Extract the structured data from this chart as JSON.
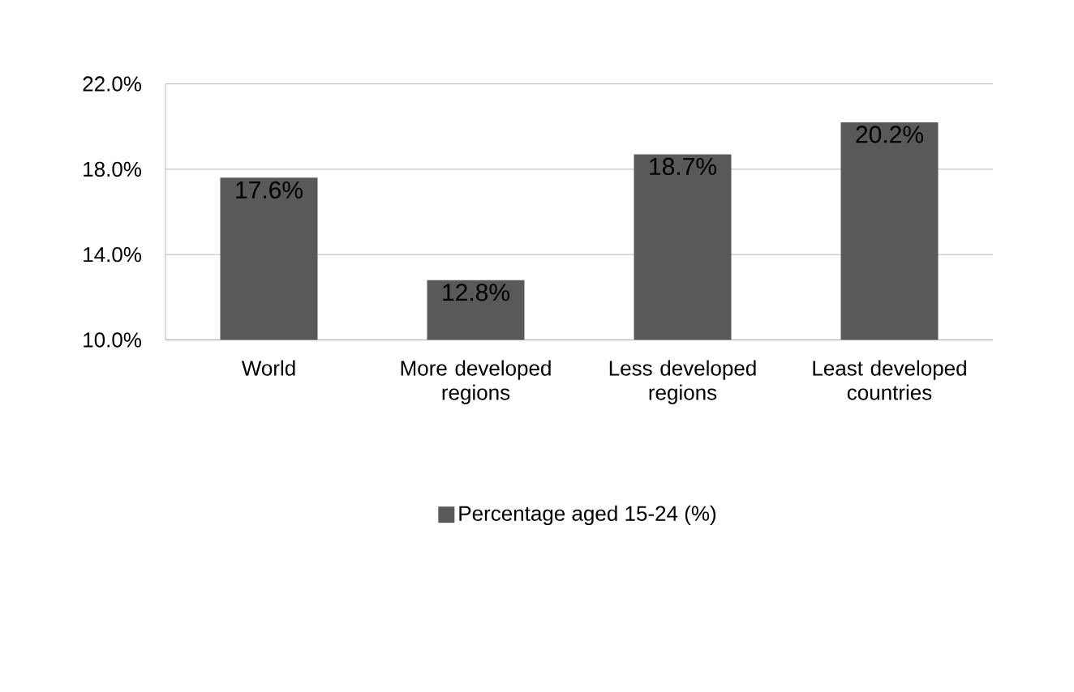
{
  "chart_data": {
    "type": "bar",
    "categories": [
      "World",
      "More developed regions",
      "Less developed regions",
      "Least developed countries"
    ],
    "series": [
      {
        "name": "Percentage aged 15-24 (%)",
        "color": "#595959",
        "values": [
          17.6,
          12.8,
          18.7,
          20.2
        ],
        "value_labels": [
          "17.6%",
          "12.8%",
          "18.7%",
          "20.2%"
        ]
      }
    ],
    "ylim": [
      10,
      22
    ],
    "yticks": [
      {
        "value": 10,
        "label": "10.0%"
      },
      {
        "value": 14,
        "label": "14.0%"
      },
      {
        "value": 18,
        "label": "18.0%"
      },
      {
        "value": 22,
        "label": "22.0%"
      }
    ],
    "grid": "y",
    "legend": "bottom"
  }
}
